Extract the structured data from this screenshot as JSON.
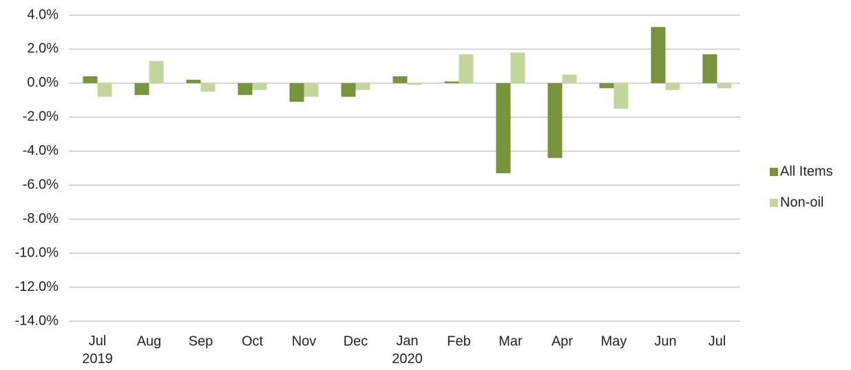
{
  "chart_data": {
    "type": "bar",
    "categories": [
      "Jul 2019",
      "Aug",
      "Sep",
      "Oct",
      "Nov",
      "Dec",
      "Jan 2020",
      "Feb",
      "Mar",
      "Apr",
      "May",
      "Jun",
      "Jul"
    ],
    "series": [
      {
        "name": "All Items",
        "color": "#77933c",
        "values": [
          0.4,
          -0.7,
          0.2,
          -0.7,
          -1.1,
          -0.8,
          0.4,
          0.1,
          -5.3,
          -4.4,
          -0.3,
          3.3,
          1.7
        ]
      },
      {
        "name": "Non-oil",
        "color": "#c3d69b",
        "values": [
          -0.8,
          1.3,
          -0.5,
          -0.4,
          -0.8,
          -0.4,
          -0.1,
          1.7,
          1.8,
          0.5,
          -1.5,
          -0.4,
          -0.3
        ]
      }
    ],
    "ylim": [
      -14,
      4
    ],
    "yticks": [
      {
        "value": -14,
        "label": "-14.0%"
      },
      {
        "value": -12,
        "label": "-12.0%"
      },
      {
        "value": -10,
        "label": "-10.0%"
      },
      {
        "value": -8,
        "label": "-8.0%"
      },
      {
        "value": -6,
        "label": "-6.0%"
      },
      {
        "value": -4,
        "label": "-4.0%"
      },
      {
        "value": -2,
        "label": "-2.0%"
      },
      {
        "value": 0,
        "label": "0.0%"
      },
      {
        "value": 2,
        "label": "2.0%"
      },
      {
        "value": 4,
        "label": "4.0%"
      }
    ],
    "grid": true,
    "legend": "right"
  }
}
